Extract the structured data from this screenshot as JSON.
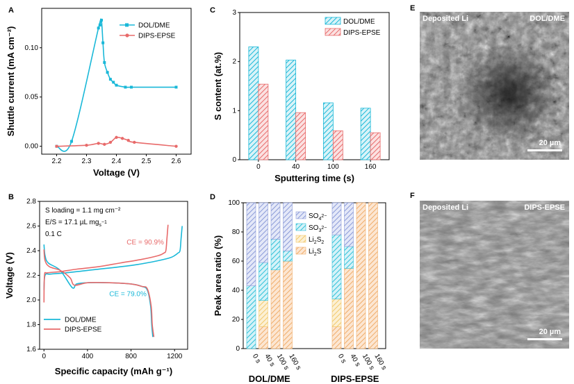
{
  "colors": {
    "dol": "#19b8d8",
    "dips": "#e86a6a",
    "so4": "#8a9ad8",
    "so3": "#2ec0d8",
    "li2s2": "#f2c86a",
    "li2s": "#f0ad6a"
  },
  "chart_data": [
    {
      "panel": "A",
      "type": "line",
      "xlabel": "Voltage (V)",
      "ylabel": "Shuttle current (mA cm⁻²)",
      "xlim": [
        2.15,
        2.65
      ],
      "ylim": [
        -0.008,
        0.14
      ],
      "xticks": [
        "2.2",
        "2.3",
        "2.4",
        "2.5",
        "2.6"
      ],
      "yticks": [
        "0.00",
        "0.05",
        "0.10"
      ],
      "series": [
        {
          "name": "DOL/DME",
          "color_key": "dol",
          "marker": "square",
          "x": [
            2.2,
            2.25,
            2.34,
            2.345,
            2.35,
            2.355,
            2.36,
            2.37,
            2.38,
            2.39,
            2.4,
            2.43,
            2.45,
            2.6
          ],
          "y": [
            0.0,
            0.005,
            0.12,
            0.123,
            0.128,
            0.105,
            0.085,
            0.075,
            0.068,
            0.065,
            0.062,
            0.06,
            0.06,
            0.06
          ]
        },
        {
          "name": "DIPS-EPSE",
          "color_key": "dips",
          "marker": "circle",
          "x": [
            2.2,
            2.3,
            2.34,
            2.36,
            2.38,
            2.4,
            2.42,
            2.44,
            2.46,
            2.6
          ],
          "y": [
            0.0,
            0.001,
            0.003,
            0.002,
            0.004,
            0.009,
            0.008,
            0.006,
            0.004,
            0.0
          ]
        }
      ]
    },
    {
      "panel": "B",
      "type": "line",
      "xlabel": "Specific capacity (mAh g⁻¹)",
      "ylabel": "Voltage (V)",
      "xlim": [
        -40,
        1320
      ],
      "ylim": [
        1.6,
        2.8
      ],
      "xticks": [
        "0",
        "400",
        "800",
        "1200"
      ],
      "yticks": [
        "1.6",
        "1.8",
        "2.0",
        "2.2",
        "2.4",
        "2.6",
        "2.8"
      ],
      "annotations": [
        "S loading = 1.1 mg cm⁻²",
        "E/S = 17.1 µL mg",
        "0.1 C"
      ],
      "annotation_sub": "s",
      "annotation_sup": "−1",
      "ce_labels": [
        {
          "text": "CE = 90.9%",
          "color_key": "dips"
        },
        {
          "text": "CE = 79.0%",
          "color_key": "dol"
        }
      ],
      "series": [
        {
          "name": "DOL/DME",
          "color_key": "dol",
          "charge": {
            "x": [
              0,
              10,
              60,
              200,
              400,
              800,
              1000,
              1150,
              1200,
              1230,
              1250,
              1260,
              1270
            ],
            "y": [
              2.08,
              2.2,
              2.21,
              2.22,
              2.24,
              2.28,
              2.31,
              2.34,
              2.36,
              2.38,
              2.4,
              2.5,
              2.6
            ]
          },
          "discharge": {
            "x": [
              0,
              10,
              40,
              150,
              260,
              300,
              400,
              600,
              800,
              900,
              950,
              980,
              990,
              1000
            ],
            "y": [
              2.45,
              2.36,
              2.3,
              2.24,
              2.1,
              2.13,
              2.14,
              2.14,
              2.13,
              2.11,
              2.08,
              1.95,
              1.8,
              1.7
            ]
          }
        },
        {
          "name": "DIPS-EPSE",
          "color_key": "dips",
          "charge": {
            "x": [
              0,
              5,
              30,
              150,
              300,
              500,
              700,
              900,
              1050,
              1100,
              1120,
              1130,
              1140
            ],
            "y": [
              1.98,
              2.2,
              2.22,
              2.23,
              2.25,
              2.27,
              2.3,
              2.33,
              2.36,
              2.38,
              2.4,
              2.5,
              2.61
            ]
          },
          "discharge": {
            "x": [
              0,
              10,
              50,
              150,
              240,
              280,
              400,
              600,
              800,
              900,
              950,
              985,
              995,
              1010
            ],
            "y": [
              2.41,
              2.32,
              2.27,
              2.24,
              2.18,
              2.12,
              2.14,
              2.14,
              2.13,
              2.11,
              2.09,
              1.95,
              1.8,
              1.7
            ]
          }
        }
      ]
    },
    {
      "panel": "C",
      "type": "bar",
      "xlabel": "Sputtering time (s)",
      "ylabel": "S content (at.%)",
      "categories": [
        "0",
        "40",
        "100",
        "160"
      ],
      "ylim": [
        0,
        3
      ],
      "yticks": [
        "0",
        "1",
        "2",
        "3"
      ],
      "series": [
        {
          "name": "DOL/DME",
          "color_key": "dol",
          "values": [
            2.3,
            2.03,
            1.16,
            1.05
          ]
        },
        {
          "name": "DIPS-EPSE",
          "color_key": "dips",
          "values": [
            1.54,
            0.96,
            0.59,
            0.55
          ]
        }
      ]
    },
    {
      "panel": "D",
      "type": "bar",
      "stacked": true,
      "ylabel": "Peak area ratio (%)",
      "ylim": [
        0,
        100
      ],
      "yticks": [
        "0",
        "20",
        "40",
        "60",
        "80",
        "100"
      ],
      "groups": [
        "DOL/DME",
        "DIPS-EPSE"
      ],
      "categories": [
        "0 s",
        "40 s",
        "100 s",
        "160 s"
      ],
      "legend": [
        {
          "label": "SO",
          "sub": "4",
          "sup": "2−",
          "color_key": "so4"
        },
        {
          "label": "SO",
          "sub": "3",
          "sup": "2−",
          "color_key": "so3"
        },
        {
          "label": "Li",
          "sub": "2",
          "mid": "S",
          "sub2": "2",
          "color_key": "li2s2"
        },
        {
          "label": "Li",
          "sub": "2",
          "mid": "S",
          "sub2": "",
          "color_key": "li2s"
        }
      ],
      "series": [
        {
          "name": "Li2S",
          "color_key": "li2s",
          "DOL/DME": [
            0,
            15,
            54,
            60
          ],
          "DIPS-EPSE": [
            15,
            55,
            100,
            100
          ]
        },
        {
          "name": "Li2S2",
          "color_key": "li2s2",
          "DOL/DME": [
            0,
            18,
            0,
            0
          ],
          "DIPS-EPSE": [
            19,
            0,
            0,
            0
          ]
        },
        {
          "name": "SO3 2-",
          "color_key": "so3",
          "DOL/DME": [
            43,
            26,
            21,
            7
          ],
          "DIPS-EPSE": [
            44,
            15,
            0,
            0
          ]
        },
        {
          "name": "SO4 2-",
          "color_key": "so4",
          "DOL/DME": [
            57,
            41,
            25,
            33
          ],
          "DIPS-EPSE": [
            22,
            30,
            0,
            0
          ]
        }
      ]
    }
  ],
  "images": {
    "E": {
      "label": "E",
      "left_text": "Deposited Li",
      "right_text": "DOL/DME",
      "scale": "20 µm"
    },
    "F": {
      "label": "F",
      "left_text": "Deposited Li",
      "right_text": "DIPS-EPSE",
      "scale": "20 µm"
    }
  }
}
